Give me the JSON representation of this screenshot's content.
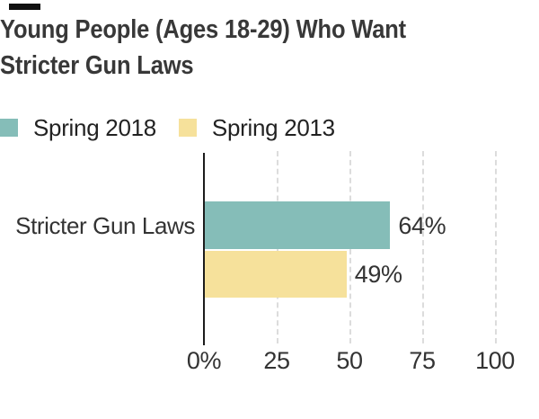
{
  "header": {
    "title_line1": "Young People (Ages 18-29) Who Want",
    "title_line2": "Stricter Gun Laws"
  },
  "legend": {
    "items": [
      {
        "label": "Spring 2018",
        "color": "#85bdb8"
      },
      {
        "label": "Spring 2013",
        "color": "#f6e19b"
      }
    ]
  },
  "chart_data": {
    "type": "bar",
    "orientation": "horizontal",
    "title": "Young People (Ages 18-29) Who Want Stricter Gun Laws",
    "categories": [
      "Stricter Gun Laws"
    ],
    "series": [
      {
        "name": "Spring 2018",
        "color": "#85bdb8",
        "values": [
          64
        ],
        "value_labels": [
          "64%"
        ]
      },
      {
        "name": "Spring 2013",
        "color": "#f6e19b",
        "values": [
          49
        ],
        "value_labels": [
          "49%"
        ]
      }
    ],
    "xlim": [
      0,
      100
    ],
    "x_ticks": [
      {
        "value": 0,
        "label": "0%"
      },
      {
        "value": 25,
        "label": "25"
      },
      {
        "value": 50,
        "label": "50"
      },
      {
        "value": 75,
        "label": "75"
      },
      {
        "value": 100,
        "label": "100"
      }
    ],
    "grid": "vertical-dashed",
    "legend_position": "top-left"
  },
  "colors": {
    "axis": "#1c1c1c",
    "gridline": "#dcdcdc",
    "title_text": "#383838",
    "chart_text": "#333333",
    "kicker": "#111111",
    "background": "#ffffff"
  }
}
